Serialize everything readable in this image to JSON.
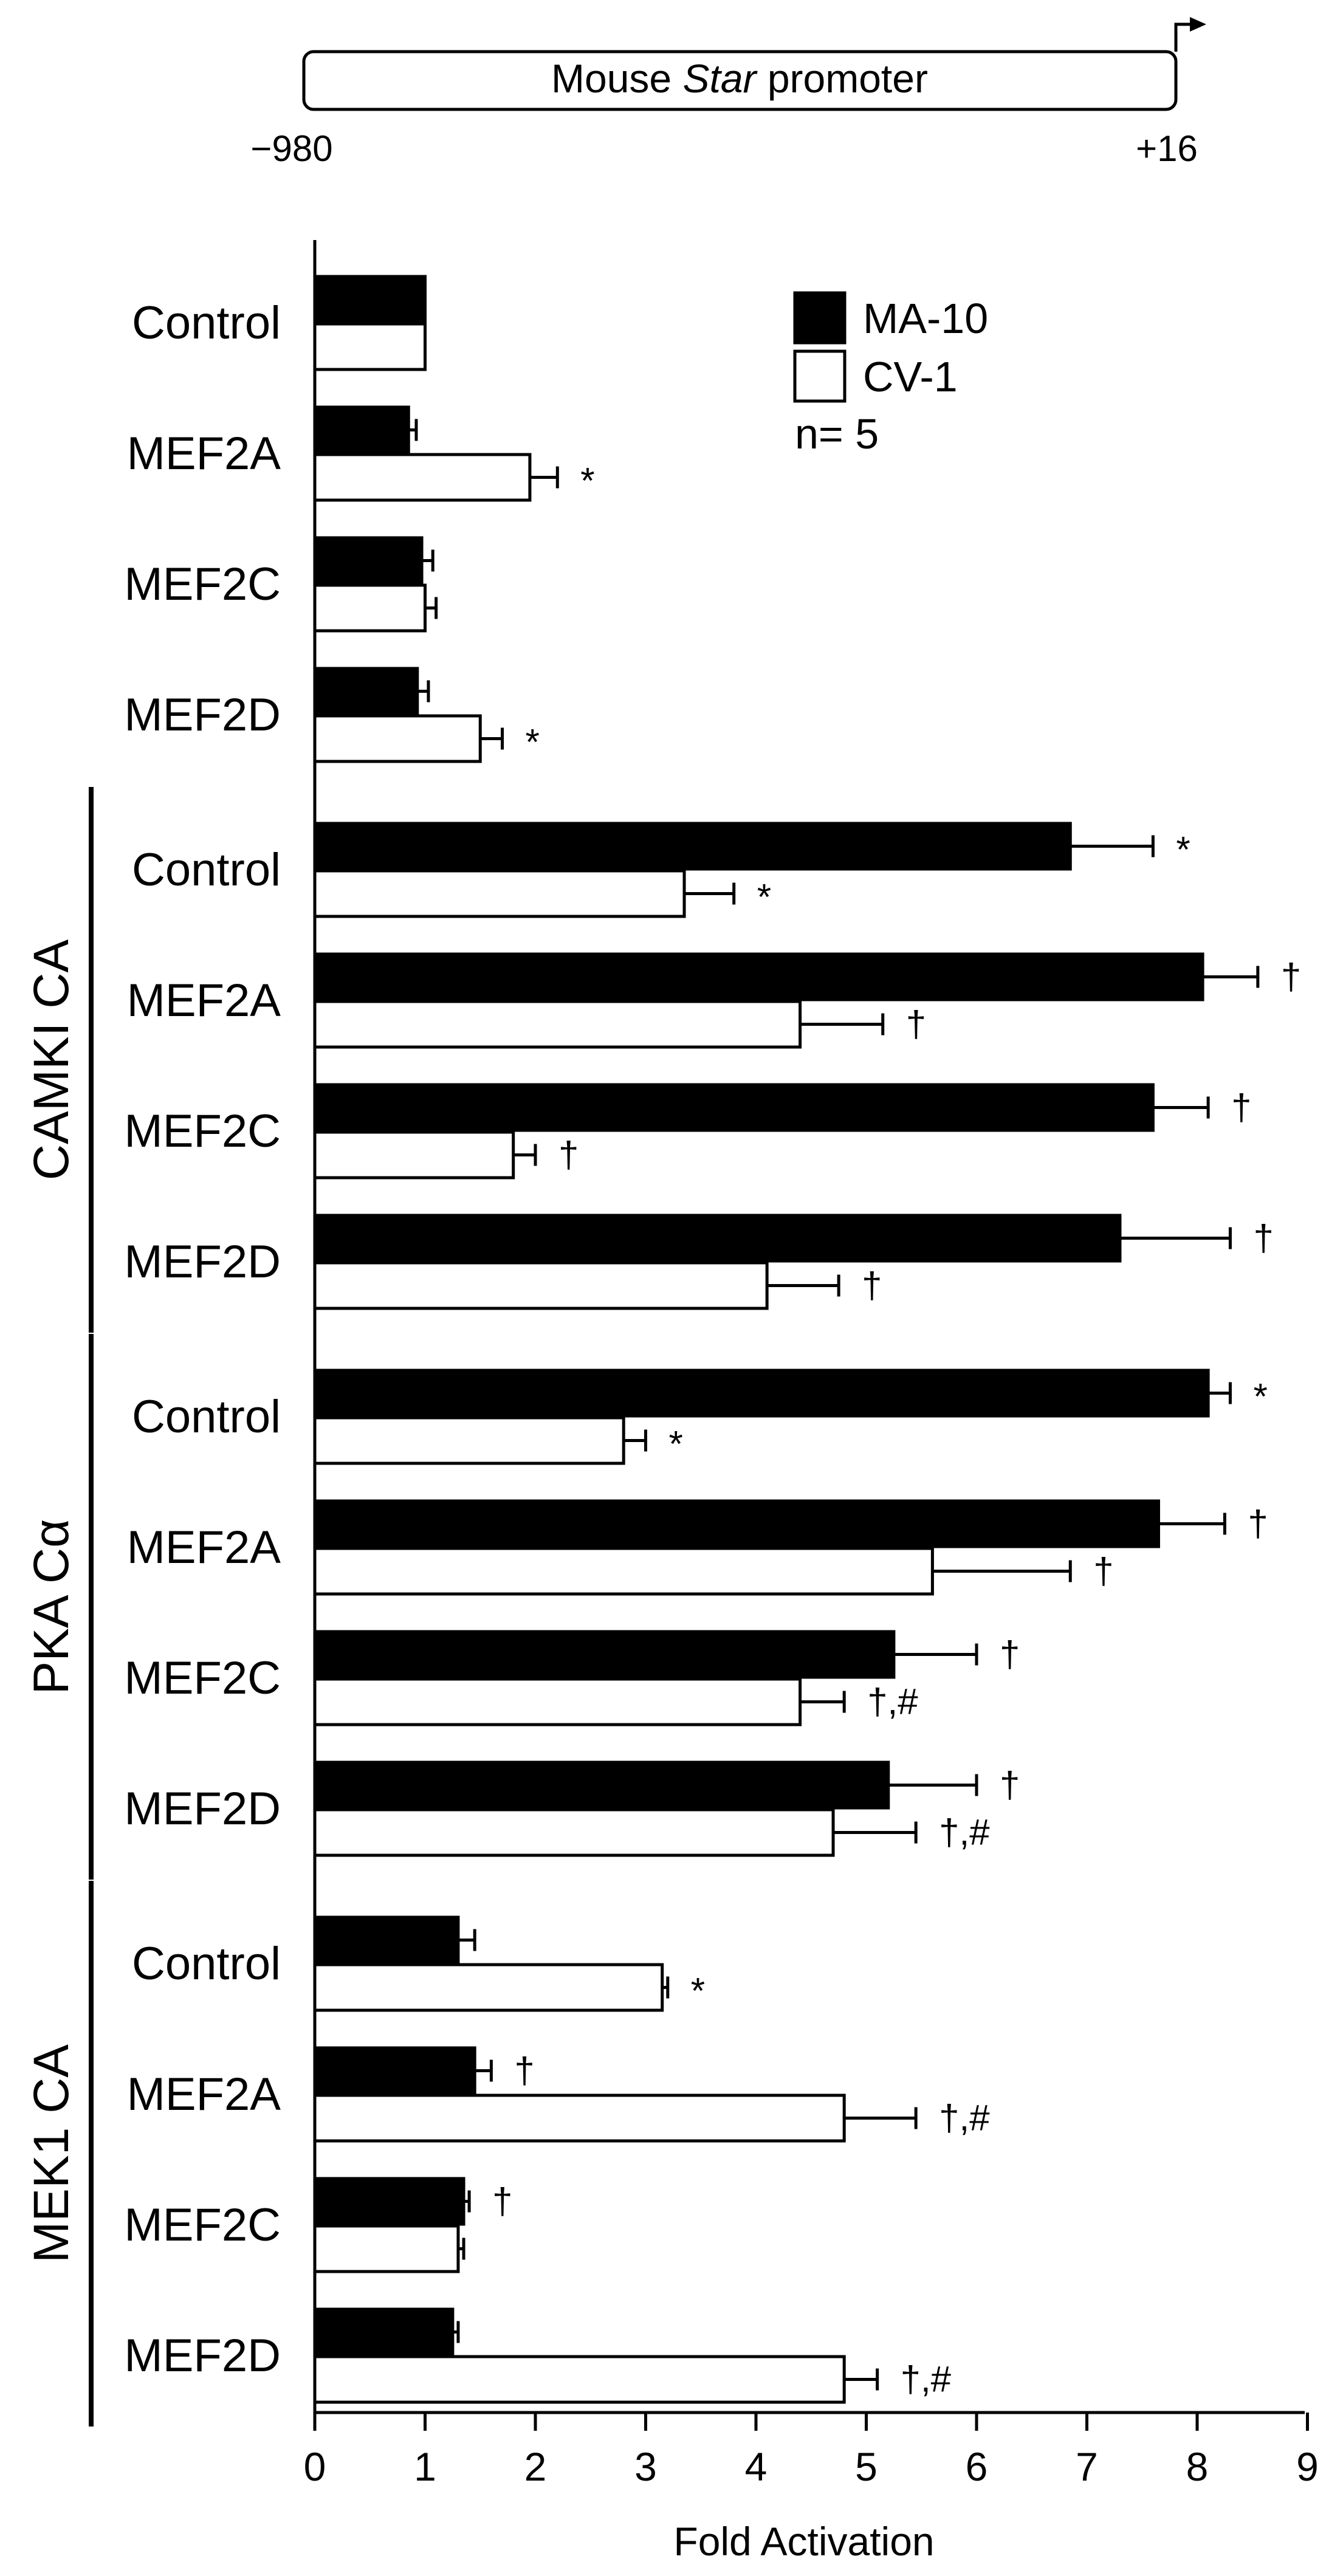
{
  "promoter": {
    "label_prefix": "Mouse ",
    "label_gene": "Star",
    "label_suffix": " promoter",
    "start": "−980",
    "end": "+16"
  },
  "chart_data": {
    "type": "bar",
    "orientation": "horizontal",
    "xlabel": "Fold Activation",
    "xlim": [
      0,
      9
    ],
    "xticks": [
      0,
      1,
      2,
      3,
      4,
      5,
      6,
      7,
      8,
      9
    ],
    "legend": {
      "placement": "top-right",
      "entries": [
        {
          "name": "MA-10",
          "color": "#000000"
        },
        {
          "name": "CV-1",
          "color": "#ffffff"
        }
      ],
      "note": "n= 5"
    },
    "groups": [
      {
        "label": "",
        "rows": [
          {
            "category": "Control",
            "ma10": 1.0,
            "ma10_err": 0.0,
            "ma10_sig": "",
            "cv1": 1.0,
            "cv1_err": 0.0,
            "cv1_sig": ""
          },
          {
            "category": "MEF2A",
            "ma10": 0.85,
            "ma10_err": 0.07,
            "ma10_sig": "",
            "cv1": 1.95,
            "cv1_err": 0.25,
            "cv1_sig": "*"
          },
          {
            "category": "MEF2C",
            "ma10": 0.97,
            "ma10_err": 0.1,
            "ma10_sig": "",
            "cv1": 1.0,
            "cv1_err": 0.1,
            "cv1_sig": ""
          },
          {
            "category": "MEF2D",
            "ma10": 0.93,
            "ma10_err": 0.1,
            "ma10_sig": "",
            "cv1": 1.5,
            "cv1_err": 0.2,
            "cv1_sig": "*"
          }
        ]
      },
      {
        "label": "CAMKI CA",
        "rows": [
          {
            "category": "Control",
            "ma10": 6.85,
            "ma10_err": 0.75,
            "ma10_sig": "*",
            "cv1": 3.35,
            "cv1_err": 0.45,
            "cv1_sig": "*"
          },
          {
            "category": "MEF2A",
            "ma10": 8.05,
            "ma10_err": 0.5,
            "ma10_sig": "†",
            "cv1": 4.4,
            "cv1_err": 0.75,
            "cv1_sig": "†"
          },
          {
            "category": "MEF2C",
            "ma10": 7.6,
            "ma10_err": 0.5,
            "ma10_sig": "†",
            "cv1": 1.8,
            "cv1_err": 0.2,
            "cv1_sig": "†"
          },
          {
            "category": "MEF2D",
            "ma10": 7.3,
            "ma10_err": 1.0,
            "ma10_sig": "†",
            "cv1": 4.1,
            "cv1_err": 0.65,
            "cv1_sig": "†"
          }
        ]
      },
      {
        "label": "PKA Cα",
        "rows": [
          {
            "category": "Control",
            "ma10": 8.1,
            "ma10_err": 0.2,
            "ma10_sig": "*",
            "cv1": 2.8,
            "cv1_err": 0.2,
            "cv1_sig": "*"
          },
          {
            "category": "MEF2A",
            "ma10": 7.65,
            "ma10_err": 0.6,
            "ma10_sig": "†",
            "cv1": 5.6,
            "cv1_err": 1.25,
            "cv1_sig": "†"
          },
          {
            "category": "MEF2C",
            "ma10": 5.25,
            "ma10_err": 0.75,
            "ma10_sig": "†",
            "cv1": 4.4,
            "cv1_err": 0.4,
            "cv1_sig": "†,#"
          },
          {
            "category": "MEF2D",
            "ma10": 5.2,
            "ma10_err": 0.8,
            "ma10_sig": "†",
            "cv1": 4.7,
            "cv1_err": 0.75,
            "cv1_sig": "†,#"
          }
        ]
      },
      {
        "label": "MEK1 CA",
        "rows": [
          {
            "category": "Control",
            "ma10": 1.3,
            "ma10_err": 0.15,
            "ma10_sig": "",
            "cv1": 3.15,
            "cv1_err": 0.05,
            "cv1_sig": "*"
          },
          {
            "category": "MEF2A",
            "ma10": 1.45,
            "ma10_err": 0.15,
            "ma10_sig": "†",
            "cv1": 4.8,
            "cv1_err": 0.65,
            "cv1_sig": "†,#"
          },
          {
            "category": "MEF2C",
            "ma10": 1.35,
            "ma10_err": 0.05,
            "ma10_sig": "†",
            "cv1": 1.3,
            "cv1_err": 0.05,
            "cv1_sig": ""
          },
          {
            "category": "MEF2D",
            "ma10": 1.25,
            "ma10_err": 0.05,
            "ma10_sig": "",
            "cv1": 4.8,
            "cv1_err": 0.3,
            "cv1_sig": "†,#"
          }
        ]
      }
    ]
  }
}
